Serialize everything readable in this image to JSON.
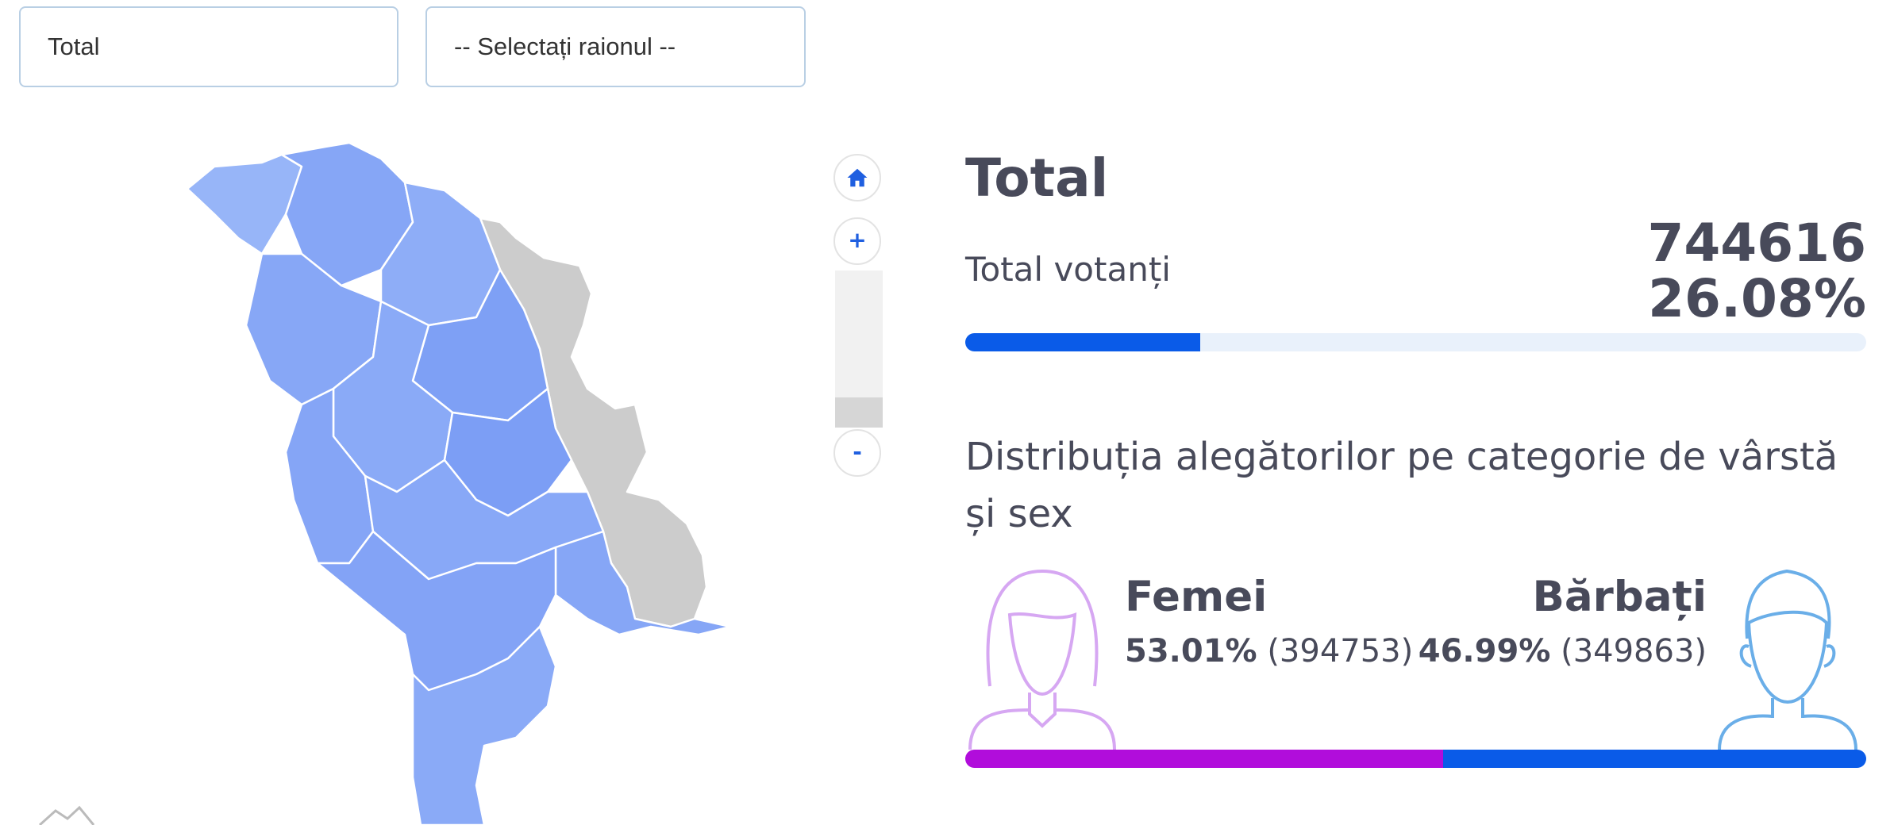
{
  "filters": {
    "region": "Total",
    "district": "-- Selectați raionul --"
  },
  "map_controls": {
    "zoom_in": "+",
    "zoom_out": "-"
  },
  "summary": {
    "title": "Total",
    "voters_label": "Total votanți",
    "voters": 744616,
    "turnout": {
      "value": 26.08,
      "label": "26.08%"
    }
  },
  "distribution": {
    "title": "Distribuția alegătorilor pe categorie de vârstă și sex",
    "women": {
      "label": "Femei",
      "share": {
        "value": 53.01,
        "label": "53.01%"
      },
      "count": {
        "value": 394753,
        "label": "(394753)"
      },
      "color": "#b10ddb"
    },
    "men": {
      "label": "Bărbați",
      "share": {
        "value": 46.99,
        "label": "46.99%"
      },
      "count": {
        "value": 349863,
        "label": "(349863)"
      },
      "color": "#0a5be8"
    }
  },
  "turnout_color": "#0a5be8"
}
